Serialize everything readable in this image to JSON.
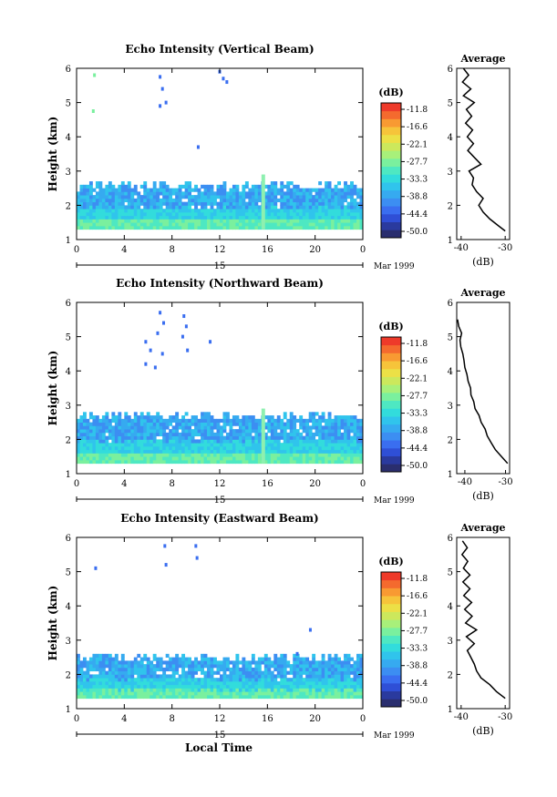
{
  "figure": {
    "date_label": "Mar 1999",
    "day_label": "15",
    "xlabel": "Local Time"
  },
  "colorbar": {
    "unit": "(dB)",
    "ticks": [
      "-11.8",
      "-16.6",
      "-22.1",
      "-27.7",
      "-33.3",
      "-38.8",
      "-44.4",
      "-50.0"
    ],
    "colors": [
      "#2a2e6e",
      "#2a3a9e",
      "#2f4fd6",
      "#3a6ef0",
      "#3c8ef2",
      "#36aaf0",
      "#30c4ec",
      "#32dcdc",
      "#4ee8c2",
      "#7af09e",
      "#a8f07a",
      "#cce85c",
      "#ece046",
      "#f6c43a",
      "#f89a32",
      "#f46a2e",
      "#ee3a2a"
    ]
  },
  "chart_data": [
    {
      "type": "heatmap",
      "title": "Echo Intensity (Vertical Beam)",
      "ylabel": "Height (km)",
      "xlim": [
        0,
        24
      ],
      "ylim": [
        1,
        6
      ],
      "xticks": [
        "0",
        "4",
        "8",
        "12",
        "16",
        "20",
        "0"
      ],
      "yticks": [
        "1",
        "2",
        "3",
        "4",
        "5",
        "6"
      ],
      "echo_layer_top_km": 2.55,
      "spike_time_h": 15.5,
      "sparse_echoes": [
        [
          1.5,
          5.8,
          "#7af09e"
        ],
        [
          1.4,
          4.75,
          "#7af09e"
        ],
        [
          7.0,
          5.75,
          "#3a6ef0"
        ],
        [
          7.2,
          5.4,
          "#3a6ef0"
        ],
        [
          7.5,
          5.0,
          "#3a6ef0"
        ],
        [
          7.0,
          4.9,
          "#3a6ef0"
        ],
        [
          10.2,
          3.7,
          "#3a6ef0"
        ],
        [
          12.0,
          5.9,
          "#3a6ef0"
        ],
        [
          12.3,
          5.7,
          "#3a6ef0"
        ],
        [
          12.6,
          5.6,
          "#3a6ef0"
        ]
      ],
      "average": {
        "title": "Average",
        "xlabel": "(dB)",
        "xlim": [
          -41,
          -29
        ],
        "xticks": [
          "-40",
          "-30"
        ],
        "height_km": [
          1.25,
          1.4,
          1.6,
          1.8,
          2.0,
          2.2,
          2.4,
          2.6,
          2.8,
          3.0,
          3.2,
          3.4,
          3.6,
          3.8,
          4.0,
          4.2,
          4.4,
          4.6,
          4.8,
          5.0,
          5.2,
          5.4,
          5.6,
          5.8,
          6.0
        ],
        "db": [
          -30.0,
          -31.5,
          -33.5,
          -35.0,
          -36.0,
          -35.0,
          -36.5,
          -37.5,
          -37.2,
          -38.2,
          -35.5,
          -37.0,
          -38.5,
          -37.2,
          -38.6,
          -37.4,
          -39.0,
          -37.6,
          -38.8,
          -37.0,
          -39.5,
          -37.8,
          -39.7,
          -38.3,
          -39.5
        ]
      }
    },
    {
      "type": "heatmap",
      "title": "Echo Intensity (Northward Beam)",
      "ylabel": "Height (km)",
      "xlim": [
        0,
        24
      ],
      "ylim": [
        1,
        6
      ],
      "xticks": [
        "0",
        "4",
        "8",
        "12",
        "16",
        "20",
        "0"
      ],
      "yticks": [
        "1",
        "2",
        "3",
        "4",
        "5",
        "6"
      ],
      "echo_layer_top_km": 2.65,
      "spike_time_h": 15.5,
      "sparse_echoes": [
        [
          7.0,
          5.7,
          "#3a6ef0"
        ],
        [
          7.3,
          5.4,
          "#3a6ef0"
        ],
        [
          6.8,
          5.1,
          "#3a6ef0"
        ],
        [
          5.8,
          4.85,
          "#3a6ef0"
        ],
        [
          6.2,
          4.6,
          "#3a6ef0"
        ],
        [
          7.2,
          4.5,
          "#3a6ef0"
        ],
        [
          5.8,
          4.2,
          "#3a6ef0"
        ],
        [
          6.6,
          4.1,
          "#3a6ef0"
        ],
        [
          9.0,
          5.6,
          "#3a6ef0"
        ],
        [
          9.2,
          5.3,
          "#3a6ef0"
        ],
        [
          8.9,
          5.0,
          "#3a6ef0"
        ],
        [
          9.3,
          4.6,
          "#3a6ef0"
        ],
        [
          11.2,
          4.85,
          "#3a6ef0"
        ]
      ],
      "average": {
        "title": "Average",
        "xlabel": "(dB)",
        "xlim": [
          -42,
          -29
        ],
        "xticks": [
          "-40",
          "-30"
        ],
        "height_km": [
          1.3,
          1.5,
          1.7,
          1.9,
          2.1,
          2.3,
          2.5,
          2.7,
          2.9,
          3.1,
          3.3,
          3.5,
          3.7,
          3.9,
          4.1,
          4.3,
          4.5,
          4.7,
          4.9,
          5.1,
          5.3,
          5.5
        ],
        "db": [
          -29.5,
          -31.0,
          -32.5,
          -33.5,
          -34.5,
          -35.0,
          -36.0,
          -36.5,
          -37.5,
          -37.8,
          -38.5,
          -38.6,
          -39.2,
          -39.5,
          -40.0,
          -40.2,
          -40.5,
          -41.0,
          -41.2,
          -40.8,
          -41.5,
          -41.8
        ]
      }
    },
    {
      "type": "heatmap",
      "title": "Echo Intensity (Eastward Beam)",
      "ylabel": "Height (km)",
      "xlim": [
        0,
        24
      ],
      "ylim": [
        1,
        6
      ],
      "xticks": [
        "0",
        "4",
        "8",
        "12",
        "16",
        "20",
        "0"
      ],
      "yticks": [
        "1",
        "2",
        "3",
        "4",
        "5",
        "6"
      ],
      "echo_layer_top_km": 2.45,
      "spike_time_h": null,
      "sparse_echoes": [
        [
          1.6,
          5.1,
          "#3a6ef0"
        ],
        [
          7.4,
          5.75,
          "#3a6ef0"
        ],
        [
          7.5,
          5.2,
          "#3a6ef0"
        ],
        [
          10.0,
          5.75,
          "#3a6ef0"
        ],
        [
          10.1,
          5.4,
          "#3a6ef0"
        ],
        [
          19.6,
          3.3,
          "#3a6ef0"
        ],
        [
          18.5,
          2.6,
          "#3a6ef0"
        ]
      ],
      "average": {
        "title": "Average",
        "xlabel": "(dB)",
        "xlim": [
          -41,
          -29
        ],
        "xticks": [
          "-40",
          "-30"
        ],
        "height_km": [
          1.3,
          1.5,
          1.7,
          1.9,
          2.1,
          2.3,
          2.5,
          2.7,
          2.9,
          3.1,
          3.3,
          3.5,
          3.7,
          3.9,
          4.1,
          4.3,
          4.5,
          4.7,
          4.9,
          5.1,
          5.3,
          5.5,
          5.7,
          5.9
        ],
        "db": [
          -30.0,
          -32.0,
          -33.5,
          -35.5,
          -36.5,
          -37.0,
          -37.8,
          -38.6,
          -37.0,
          -38.8,
          -36.5,
          -39.0,
          -37.5,
          -39.2,
          -37.6,
          -39.4,
          -38.0,
          -39.6,
          -38.0,
          -39.5,
          -38.5,
          -39.8,
          -38.6,
          -39.7
        ]
      }
    }
  ]
}
